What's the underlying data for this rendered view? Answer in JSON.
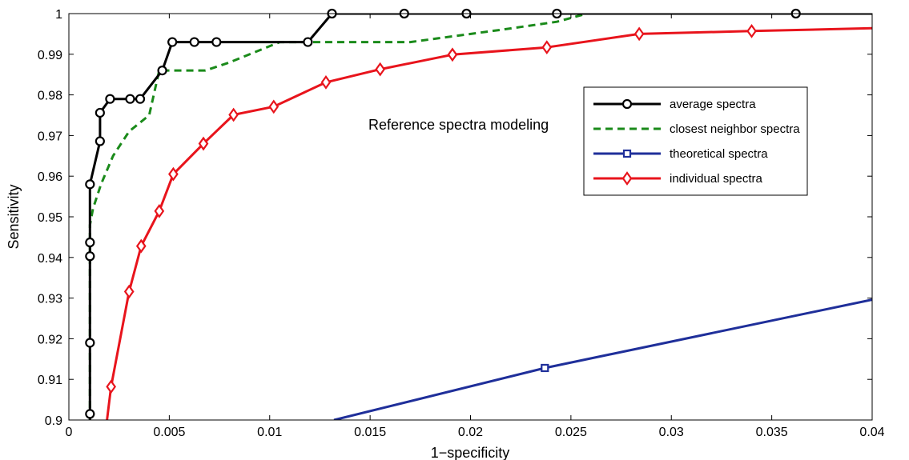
{
  "chart_data": {
    "type": "line",
    "title": "",
    "xlabel": "1−specificity",
    "ylabel": "Sensitivity",
    "xlim": [
      0,
      0.04
    ],
    "ylim": [
      0.9,
      1.0
    ],
    "x_ticks": [
      0,
      0.005,
      0.01,
      0.015,
      0.02,
      0.025,
      0.03,
      0.035,
      0.04
    ],
    "x_tick_labels": [
      "0",
      "0.005",
      "0.01",
      "0.015",
      "0.02",
      "0.025",
      "0.03",
      "0.035",
      "0.04"
    ],
    "y_ticks": [
      0.9,
      0.91,
      0.92,
      0.93,
      0.94,
      0.95,
      0.96,
      0.97,
      0.98,
      0.99,
      1.0
    ],
    "y_tick_labels": [
      "0.9",
      "0.91",
      "0.92",
      "0.93",
      "0.94",
      "0.95",
      "0.96",
      "0.97",
      "0.98",
      "0.99",
      "1"
    ],
    "grid": false,
    "legend_position": "upper-right",
    "annotation": "Reference spectra modeling",
    "series": [
      {
        "name": "average spectra",
        "color": "#000000",
        "line_style": "solid",
        "marker": "circle",
        "x": [
          0.00105,
          0.00105,
          0.00105,
          0.00105,
          0.00105,
          0.00105,
          0.00155,
          0.00155,
          0.00205,
          0.00305,
          0.00355,
          0.00465,
          0.00515,
          0.00625,
          0.00735,
          0.0119,
          0.0131,
          0.0167,
          0.0198,
          0.0243,
          0.0362,
          0.04
        ],
        "y": [
          0.9,
          0.9015,
          0.919,
          0.9403,
          0.9437,
          0.958,
          0.9686,
          0.9756,
          0.979,
          0.979,
          0.979,
          0.986,
          0.993,
          0.993,
          0.993,
          0.993,
          1.0,
          1.0,
          1.0,
          1.0,
          1.0,
          1.0
        ],
        "marker_indices": [
          1,
          2,
          3,
          4,
          5,
          6,
          7,
          8,
          9,
          10,
          11,
          12,
          13,
          14,
          15,
          16,
          17,
          18,
          19,
          20
        ]
      },
      {
        "name": "closest neighbor spectra",
        "color": "#1a8a1a",
        "line_style": "dashed",
        "marker": "none",
        "x": [
          0.00105,
          0.00105,
          0.0012,
          0.0016,
          0.0022,
          0.003,
          0.004,
          0.0045,
          0.0051,
          0.0068,
          0.008,
          0.0105,
          0.0119,
          0.017,
          0.0215,
          0.0243,
          0.0258,
          0.04
        ],
        "y": [
          0.9,
          0.948,
          0.952,
          0.958,
          0.965,
          0.971,
          0.975,
          0.986,
          0.986,
          0.986,
          0.988,
          0.993,
          0.993,
          0.993,
          0.996,
          0.998,
          1.0,
          1.0
        ]
      },
      {
        "name": "theoretical spectra",
        "color": "#1f2f9a",
        "line_style": "solid",
        "marker": "square",
        "x": [
          0.0132,
          0.0237,
          0.04
        ],
        "y": [
          0.9,
          0.9128,
          0.9296
        ],
        "marker_indices": [
          1
        ]
      },
      {
        "name": "individual spectra",
        "color": "#e8141c",
        "line_style": "solid",
        "marker": "diamond",
        "x": [
          0.0019,
          0.0021,
          0.003,
          0.0036,
          0.0045,
          0.0052,
          0.0067,
          0.0082,
          0.0102,
          0.0128,
          0.0155,
          0.0191,
          0.0238,
          0.0284,
          0.034,
          0.04
        ],
        "y": [
          0.9,
          0.9082,
          0.9316,
          0.9428,
          0.9514,
          0.9605,
          0.968,
          0.9751,
          0.9771,
          0.9831,
          0.9863,
          0.9899,
          0.9917,
          0.995,
          0.9957,
          0.9964
        ],
        "marker_indices": [
          1,
          2,
          3,
          4,
          5,
          6,
          7,
          8,
          9,
          10,
          11,
          12,
          13,
          14
        ]
      }
    ]
  }
}
